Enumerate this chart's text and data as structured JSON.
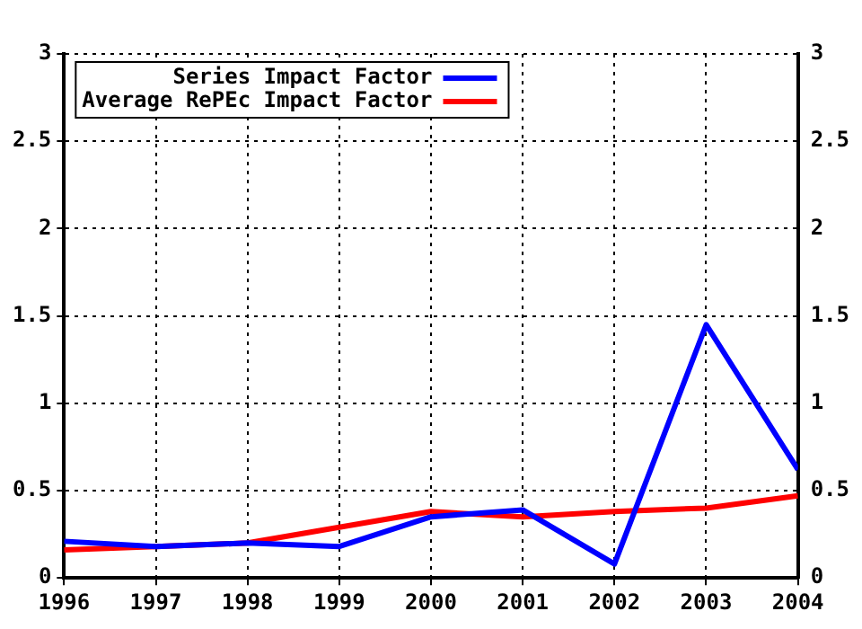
{
  "chart_data": {
    "type": "line",
    "x": [
      1996,
      1997,
      1998,
      1999,
      2000,
      2001,
      2002,
      2003,
      2004
    ],
    "series": [
      {
        "name": "Series Impact Factor",
        "color": "#0000ff",
        "values": [
          0.21,
          0.18,
          0.2,
          0.18,
          0.35,
          0.39,
          0.08,
          1.45,
          0.62
        ]
      },
      {
        "name": "Average RePEc Impact Factor",
        "color": "#ff0000",
        "values": [
          0.16,
          0.18,
          0.2,
          0.29,
          0.38,
          0.35,
          0.38,
          0.4,
          0.47
        ]
      }
    ],
    "xlim": [
      1996,
      2004
    ],
    "xticks": [
      1996,
      1997,
      1998,
      1999,
      2000,
      2001,
      2002,
      2003,
      2004
    ],
    "ylim": [
      0,
      3
    ],
    "yticks": [
      0,
      0.5,
      1,
      1.5,
      2,
      2.5,
      3
    ],
    "y2lim": [
      0,
      3
    ],
    "y2ticks": [
      0,
      0.5,
      1,
      1.5,
      2,
      2.5,
      3
    ],
    "grid": true,
    "legend": "top left",
    "marker": "none",
    "line_style": "solid"
  }
}
